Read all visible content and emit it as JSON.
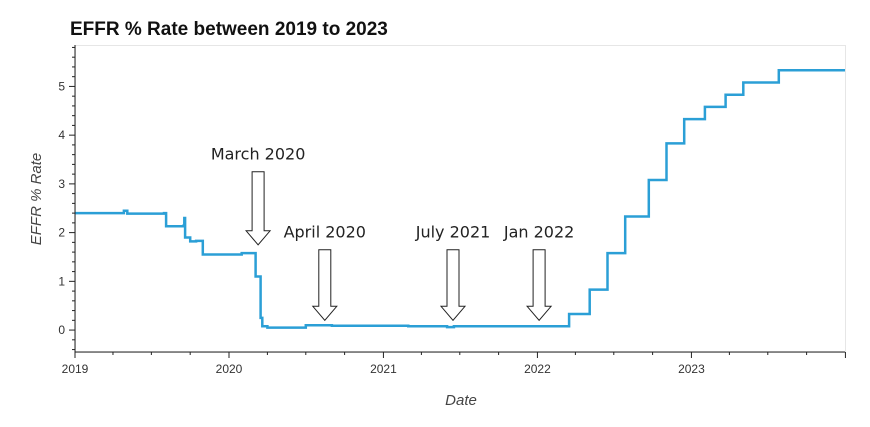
{
  "chart_data": {
    "type": "line",
    "title": "EFFR % Rate between 2019 to 2023",
    "xlabel": "Date",
    "ylabel": "EFFR % Rate",
    "xlim": [
      "2019-01-01",
      "2023-12-31"
    ],
    "ylim": [
      -0.45,
      5.85
    ],
    "x_ticks": [
      "2019",
      "2020",
      "2021",
      "2022",
      "2023"
    ],
    "y_ticks": [
      "0",
      "1",
      "2",
      "3",
      "4",
      "5"
    ],
    "grid": false,
    "line_color": "#2b9fd6",
    "series": [
      {
        "x": [
          "2019-01-01",
          "2019-04-20",
          "2019-04-27",
          "2019-05-05",
          "2019-07-31",
          "2019-08-05",
          "2019-09-15",
          "2019-09-17",
          "2019-09-19",
          "2019-09-21",
          "2019-10-01",
          "2019-10-15",
          "2019-10-31",
          "2019-11-15",
          "2020-01-20",
          "2020-01-31",
          "2020-02-20",
          "2020-03-04",
          "2020-03-10",
          "2020-03-16",
          "2020-03-20",
          "2020-04-01",
          "2020-05-01",
          "2020-07-01",
          "2020-09-01",
          "2021-01-01",
          "2021-03-01",
          "2021-06-01",
          "2021-06-17",
          "2021-09-01",
          "2022-01-01",
          "2022-03-17",
          "2022-05-05",
          "2022-06-16",
          "2022-07-28",
          "2022-09-22",
          "2022-11-03",
          "2022-12-15",
          "2023-02-02",
          "2023-03-23",
          "2023-05-04",
          "2023-07-27",
          "2023-12-31"
        ],
        "y": [
          2.4,
          2.4,
          2.45,
          2.39,
          2.4,
          2.13,
          2.14,
          2.3,
          1.9,
          1.9,
          1.82,
          1.83,
          1.55,
          1.55,
          1.55,
          1.58,
          1.58,
          1.1,
          1.1,
          0.25,
          0.08,
          0.05,
          0.05,
          0.1,
          0.09,
          0.09,
          0.08,
          0.06,
          0.08,
          0.08,
          0.08,
          0.33,
          0.83,
          1.58,
          2.33,
          3.08,
          3.83,
          4.33,
          4.58,
          4.83,
          5.08,
          5.33,
          5.33
        ]
      }
    ],
    "annotations": [
      {
        "label": "March 2020",
        "x": "2020-03-10",
        "y_top": 3.25,
        "y_bottom": 1.75
      },
      {
        "label": "April 2020",
        "x": "2020-08-15",
        "y_top": 1.65,
        "y_bottom": 0.2
      },
      {
        "label": "July 2021",
        "x": "2021-06-15",
        "y_top": 1.65,
        "y_bottom": 0.2
      },
      {
        "label": "Jan 2022",
        "x": "2022-01-05",
        "y_top": 1.65,
        "y_bottom": 0.2
      }
    ]
  }
}
